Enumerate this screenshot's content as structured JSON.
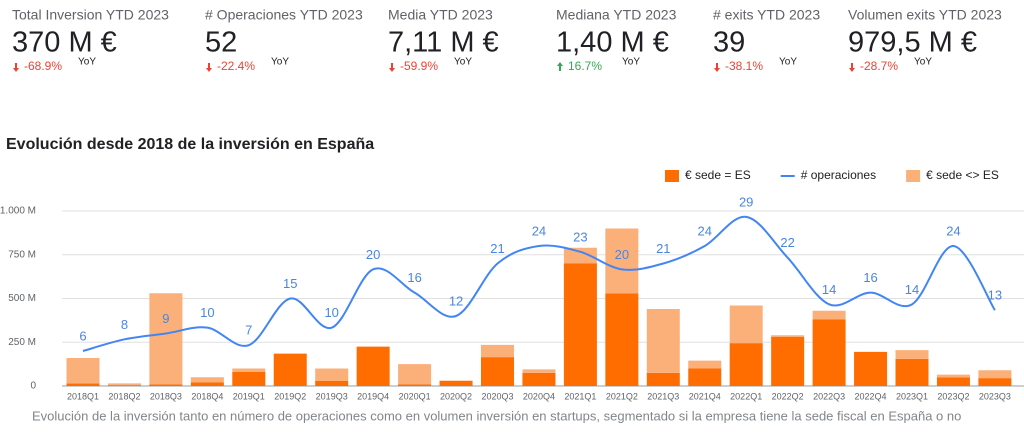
{
  "kpis": [
    {
      "title": "Total Inversion YTD 2023",
      "value": "370 M €",
      "change": "-68.9%",
      "period": "YoY",
      "trend": "down"
    },
    {
      "title": "# Operaciones YTD 2023",
      "value": "52",
      "change": "-22.4%",
      "period": "YoY",
      "trend": "down"
    },
    {
      "title": "Media YTD 2023",
      "value": "7,11 M €",
      "change": "-59.9%",
      "period": "YoY",
      "trend": "down"
    },
    {
      "title": "Mediana YTD 2023",
      "value": "1,40 M €",
      "change": "16.7%",
      "period": "YoY",
      "trend": "up"
    },
    {
      "title": "# exits YTD 2023",
      "value": "39",
      "change": "-38.1%",
      "period": "YoY",
      "trend": "down"
    },
    {
      "title": "Volumen exits YTD 2023",
      "value": "979,5 M €",
      "change": "-28.7%",
      "period": "YoY",
      "trend": "down"
    }
  ],
  "chart_data": {
    "type": "combo",
    "title": "Evolución desde 2018 de la inversión en España",
    "caption": "Evolución de la inversión tanto en número de operaciones como en volumen inversión en startups, segmentado si la empresa tiene la sede fiscal en España o no",
    "categories": [
      "2018Q1",
      "2018Q2",
      "2018Q3",
      "2018Q4",
      "2019Q1",
      "2019Q2",
      "2019Q3",
      "2019Q4",
      "2020Q1",
      "2020Q2",
      "2020Q3",
      "2020Q4",
      "2021Q1",
      "2021Q2",
      "2021Q3",
      "2021Q4",
      "2022Q1",
      "2022Q2",
      "2022Q3",
      "2022Q4",
      "2023Q1",
      "2023Q2",
      "2023Q3"
    ],
    "series": [
      {
        "name": "€ sede = ES",
        "type": "bar",
        "color": "#ff6d01",
        "values": [
          15,
          5,
          10,
          20,
          80,
          185,
          30,
          225,
          10,
          30,
          165,
          75,
          700,
          530,
          75,
          100,
          245,
          280,
          380,
          195,
          155,
          50,
          45
        ]
      },
      {
        "name": "# operaciones",
        "type": "line",
        "axis": "y2",
        "color": "#4285f4",
        "values": [
          6,
          8,
          9,
          10,
          7,
          15,
          10,
          20,
          16,
          12,
          21,
          24,
          23,
          20,
          21,
          24,
          29,
          22,
          14,
          16,
          14,
          24,
          13
        ]
      },
      {
        "name": "€ sede <> ES",
        "type": "bar",
        "color": "#fbb07a",
        "values": [
          145,
          10,
          520,
          30,
          20,
          0,
          70,
          0,
          115,
          0,
          70,
          20,
          90,
          370,
          365,
          45,
          215,
          10,
          50,
          0,
          50,
          15,
          45
        ]
      }
    ],
    "ylim": [
      0,
      1000
    ],
    "yticks": [
      0,
      {
        "value": 250,
        "label": "250 M"
      },
      {
        "value": 500,
        "label": "500 M"
      },
      {
        "value": 750,
        "label": "750 M"
      },
      {
        "value": 1000,
        "label": "1.000 M"
      }
    ],
    "y2lim": [
      0,
      30
    ],
    "grid": true,
    "stacked": true,
    "legend": "top-right"
  }
}
